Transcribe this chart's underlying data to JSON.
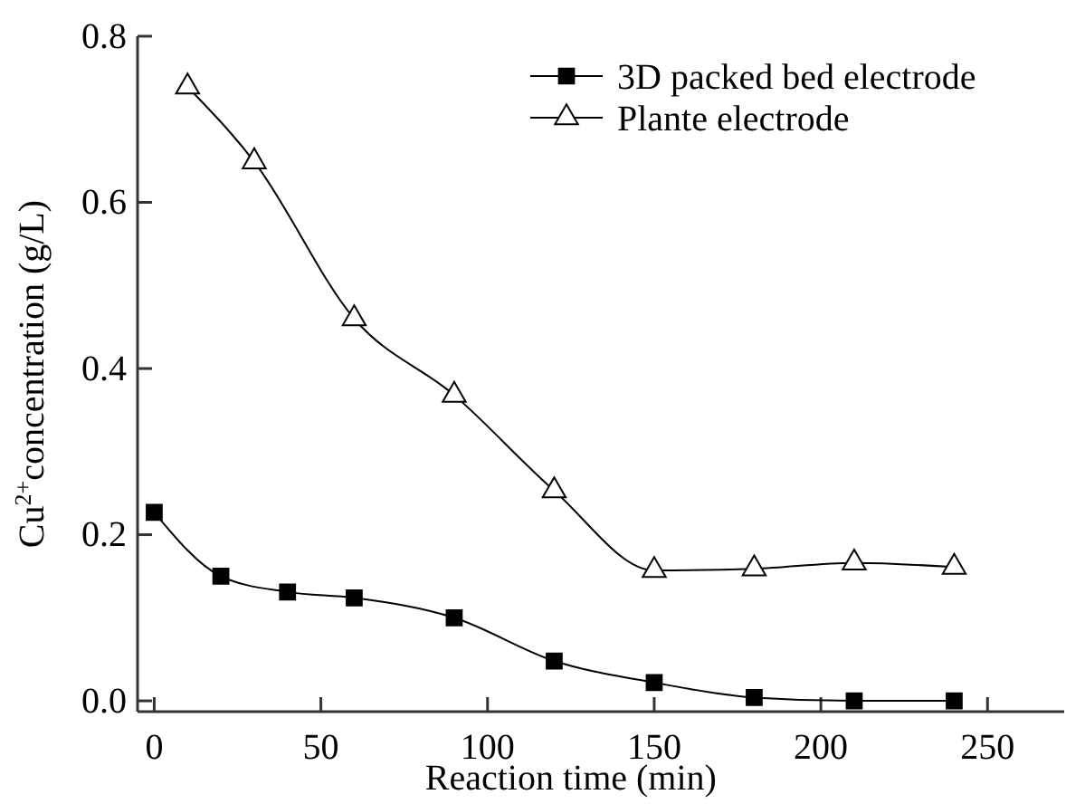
{
  "chart_data": {
    "type": "line",
    "xlabel": "Reaction time (min)",
    "ylabel": "Cu$^{2+}$concentration (g/L)",
    "xlim": [
      -5,
      273
    ],
    "xticks": [
      0,
      50,
      100,
      150,
      200,
      250
    ],
    "ylim": [
      -0.013,
      0.8
    ],
    "yticks": [
      {
        "value": 0,
        "label": "0.0"
      },
      0.2,
      0.4,
      0.6,
      0.8
    ],
    "legend": "top right",
    "grid": false,
    "series": [
      {
        "name": "3D packed bed electrode",
        "color": "#000000",
        "marker": "square",
        "x": [
          0,
          20,
          40,
          60,
          90,
          120,
          150,
          180,
          210,
          240
        ],
        "values": [
          0.227,
          0.15,
          0.131,
          0.124,
          0.1,
          0.048,
          0.022,
          0.004,
          0.0,
          0.0
        ]
      },
      {
        "name": "Plante electrode",
        "color": "#000000",
        "marker": "triangle",
        "x": [
          10,
          30,
          60,
          90,
          120,
          150,
          180,
          210,
          240
        ],
        "values": [
          0.739,
          0.649,
          0.46,
          0.368,
          0.253,
          0.157,
          0.159,
          0.166,
          0.161
        ]
      }
    ]
  }
}
